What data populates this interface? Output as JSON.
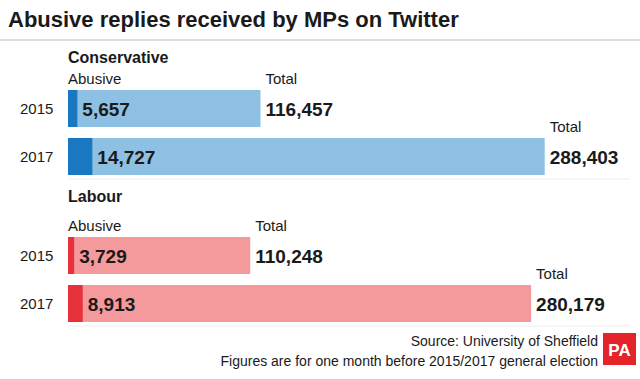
{
  "title": "Abusive replies received by MPs on Twitter",
  "source": "Source: University of Sheffield",
  "note": "Figures are for one month before 2015/2017 general election",
  "logo": "PA",
  "chart_data": [
    {
      "type": "bar",
      "orientation": "horizontal",
      "title": "Conservative",
      "categories": [
        "2015",
        "2017"
      ],
      "series": [
        {
          "name": "Total",
          "color": "#8dc0e3",
          "values": [
            116457,
            288403
          ],
          "value_labels": [
            "116,457",
            "288,403"
          ]
        },
        {
          "name": "Abusive",
          "color": "#1a78c2",
          "values": [
            5657,
            14727
          ],
          "value_labels": [
            "5,657",
            "14,727"
          ]
        }
      ],
      "xlim": [
        0,
        340000
      ],
      "data_labels": true,
      "tick_labels": "y"
    },
    {
      "type": "bar",
      "orientation": "horizontal",
      "title": "Labour",
      "categories": [
        "2015",
        "2017"
      ],
      "series": [
        {
          "name": "Total",
          "color": "#f4999c",
          "values": [
            110248,
            280179
          ],
          "value_labels": [
            "110,248",
            "280,179"
          ]
        },
        {
          "name": "Abusive",
          "color": "#e8323b",
          "values": [
            3729,
            8913
          ],
          "value_labels": [
            "3,729",
            "8,913"
          ]
        }
      ],
      "xlim": [
        0,
        340000
      ],
      "data_labels": true,
      "tick_labels": "y"
    }
  ]
}
